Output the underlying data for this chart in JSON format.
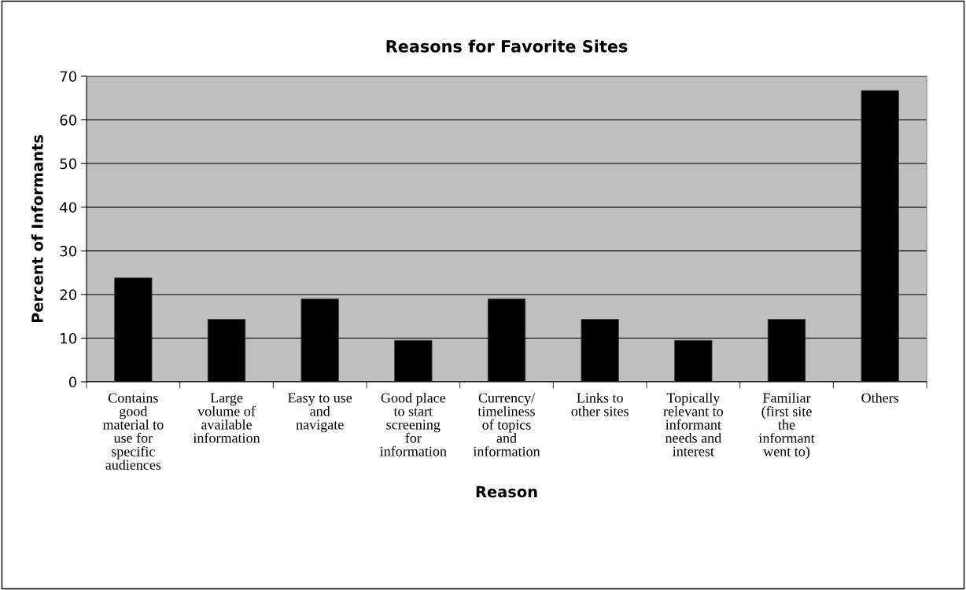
{
  "chart_data": {
    "type": "bar",
    "title": "Reasons for Favorite Sites",
    "xlabel": "Reason",
    "ylabel": "Percent of Informants",
    "categories": [
      "Contains\ngood\nmaterial to\nuse for\nspecific\naudiences",
      "Large\nvolume of\navailable\ninformation",
      "Easy to use\nand\nnavigate",
      "Good place\nto start\nscreening\nfor\ninformation",
      "Currency/\ntimeliness\nof topics\nand\ninformation",
      "Links to\nother sites",
      "Topically\nrelevant to\ninformant\nneeds and\ninterest",
      "Familiar\n(first site\nthe\ninformant\nwent to)",
      "Others"
    ],
    "values": [
      23.8,
      14.3,
      19.0,
      9.5,
      19.0,
      14.3,
      9.5,
      14.3,
      66.7
    ],
    "color": "#000000",
    "ylim": [
      0,
      70
    ],
    "yticks": [
      0,
      10,
      20,
      30,
      40,
      50,
      60,
      70
    ],
    "grid": "y",
    "legend": false
  }
}
